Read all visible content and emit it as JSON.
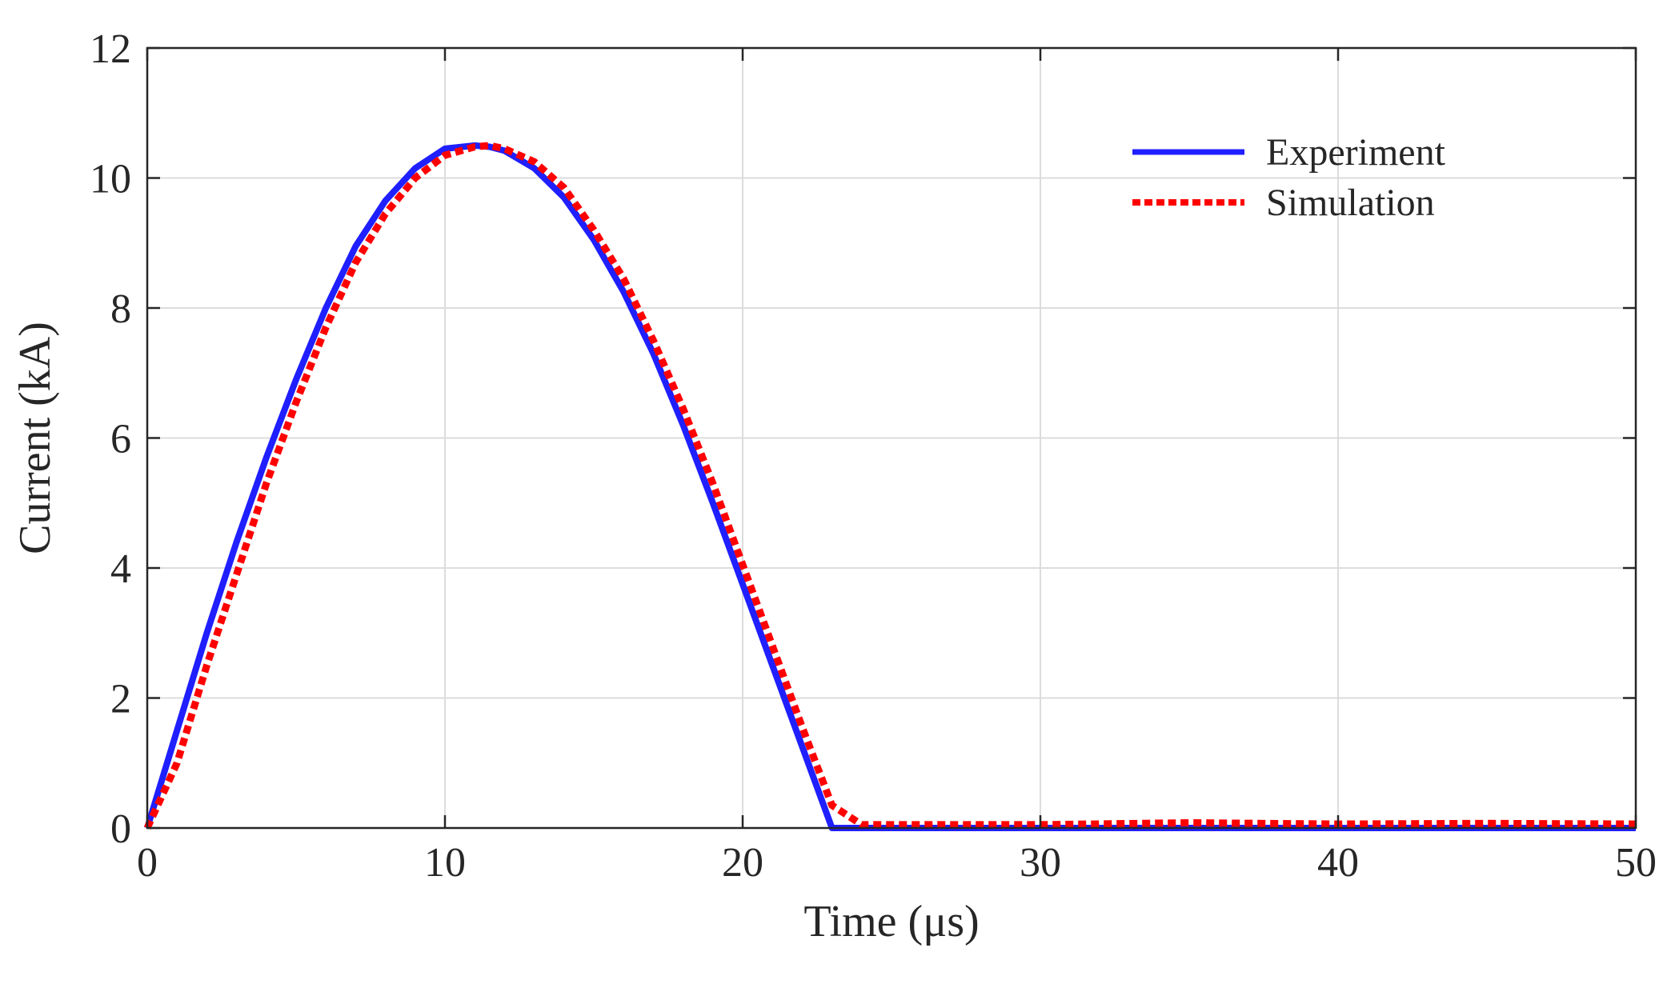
{
  "chart_data": {
    "type": "line",
    "title": "",
    "xlabel": "Time (μs)",
    "ylabel": "Current (kA)",
    "xlim": [
      0,
      50
    ],
    "ylim": [
      0,
      12
    ],
    "xticks": [
      0,
      10,
      20,
      30,
      40,
      50
    ],
    "yticks": [
      0,
      2,
      4,
      6,
      8,
      10,
      12
    ],
    "xtick_labels": [
      "0",
      "10",
      "20",
      "30",
      "40",
      "50"
    ],
    "ytick_labels": [
      "0",
      "2",
      "4",
      "6",
      "8",
      "10",
      "12"
    ],
    "grid": true,
    "legend_position": "top-right",
    "series": [
      {
        "name": "Experiment",
        "color": "#1f1fff",
        "style": "solid",
        "x": [
          0,
          1,
          2,
          3,
          4,
          5,
          6,
          7,
          8,
          9,
          10,
          11,
          11.5,
          12,
          13,
          14,
          15,
          16,
          17,
          18,
          19,
          20,
          21,
          22,
          23,
          24,
          25,
          30,
          35,
          40,
          45,
          50
        ],
        "y": [
          0,
          1.5,
          3.0,
          4.4,
          5.7,
          6.9,
          8.0,
          8.95,
          9.65,
          10.15,
          10.45,
          10.5,
          10.48,
          10.42,
          10.15,
          9.7,
          9.05,
          8.25,
          7.3,
          6.2,
          5.0,
          3.75,
          2.5,
          1.25,
          0.0,
          0.0,
          0.0,
          0.0,
          0.0,
          0.0,
          0.0,
          0.0
        ]
      },
      {
        "name": "Simulation",
        "color": "#ff0000",
        "style": "dotted",
        "x": [
          0,
          1,
          2,
          3,
          4,
          5,
          6,
          7,
          8,
          9,
          10,
          11,
          11.5,
          12,
          13,
          14,
          15,
          16,
          17,
          18,
          19,
          20,
          21,
          22,
          23,
          24,
          25,
          30,
          35,
          40,
          45,
          50
        ],
        "y": [
          0,
          1.0,
          2.5,
          3.9,
          5.3,
          6.55,
          7.7,
          8.7,
          9.45,
          10.0,
          10.35,
          10.48,
          10.5,
          10.45,
          10.25,
          9.85,
          9.2,
          8.45,
          7.5,
          6.45,
          5.3,
          4.05,
          2.8,
          1.55,
          0.35,
          0.05,
          0.05,
          0.05,
          0.08,
          0.06,
          0.07,
          0.06
        ]
      }
    ]
  }
}
